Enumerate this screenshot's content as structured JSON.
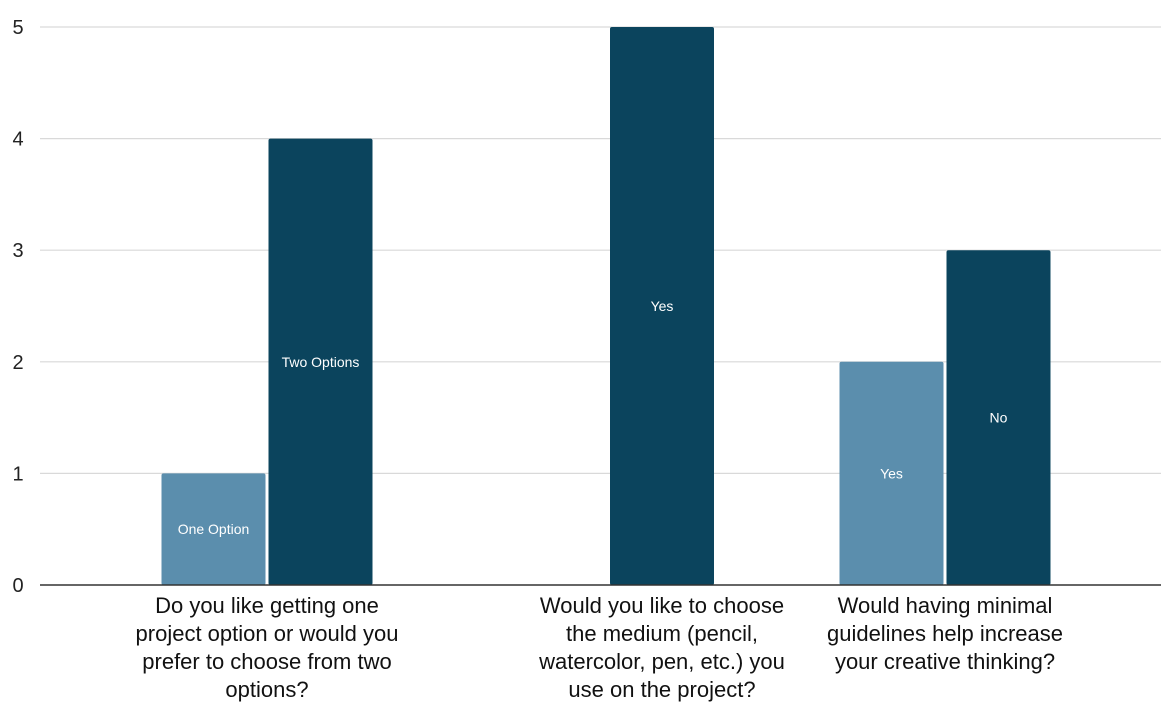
{
  "chart_data": {
    "type": "bar",
    "title": "",
    "xlabel": "",
    "ylabel": "",
    "ylim": [
      0,
      5
    ],
    "yticks": [
      0,
      1,
      2,
      3,
      4,
      5
    ],
    "grid": true,
    "legend": "none",
    "colors": {
      "light": "#5b8ead",
      "dark": "#0b445d",
      "grid": "#d9d9d9",
      "axis": "#333333",
      "bar_text": "#ffffff"
    },
    "groups": [
      {
        "category": "Do you like getting one project option or would you prefer to choose from two options?",
        "category_lines": [
          "Do you like getting one",
          "project option or would you",
          "prefer to choose from two",
          "options?"
        ],
        "bars": [
          {
            "label": "One Option",
            "value": 1,
            "color": "light"
          },
          {
            "label": "Two Options",
            "value": 4,
            "color": "dark"
          }
        ]
      },
      {
        "category": "Would you like to choose the medium (pencil, watercolor, pen, etc.) you use on the project?",
        "category_lines": [
          "Would you like to choose",
          "the medium (pencil,",
          "watercolor, pen, etc.) you",
          "use on the project?"
        ],
        "bars": [
          {
            "label": "Yes",
            "value": 5,
            "color": "dark"
          }
        ]
      },
      {
        "category": "Would having minimal guidelines help increase your creative thinking?",
        "category_lines": [
          "Would having minimal",
          "guidelines help increase",
          "your creative thinking?"
        ],
        "bars": [
          {
            "label": "Yes",
            "value": 2,
            "color": "light"
          },
          {
            "label": "No",
            "value": 3,
            "color": "dark"
          }
        ]
      }
    ]
  }
}
